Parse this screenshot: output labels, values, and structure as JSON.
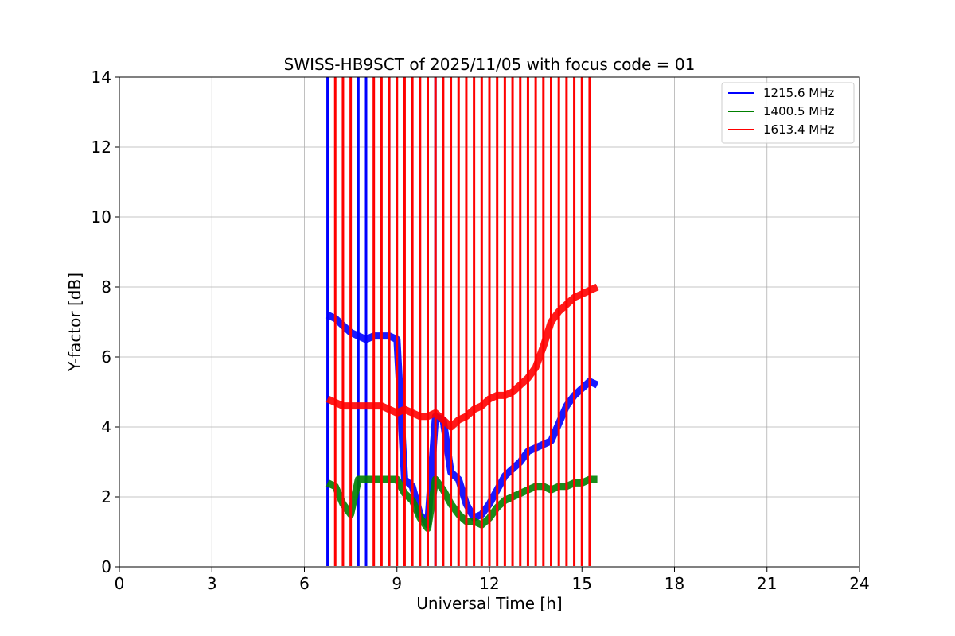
{
  "chart_data": {
    "type": "line",
    "title": "SWISS-HB9SCT of 2025/11/05 with focus code = 01",
    "xlabel": "Universal Time [h]",
    "ylabel": "Y-factor [dB]",
    "xlim": [
      0,
      24
    ],
    "ylim": [
      0,
      14
    ],
    "xticks": [
      "0",
      "3",
      "6",
      "9",
      "12",
      "15",
      "18",
      "21",
      "24"
    ],
    "yticks": [
      "0",
      "2",
      "4",
      "6",
      "8",
      "10",
      "12",
      "14"
    ],
    "grid": true,
    "legend_position": "top-right",
    "series": [
      {
        "name": "1215.6 MHz",
        "color": "#0000ff",
        "spikes": [
          6.75,
          7.75,
          8.0,
          8.75,
          10.25
        ],
        "points": [
          [
            6.75,
            7.2
          ],
          [
            7.0,
            7.1
          ],
          [
            7.25,
            6.9
          ],
          [
            7.5,
            6.7
          ],
          [
            7.75,
            6.6
          ],
          [
            8.0,
            6.5
          ],
          [
            8.25,
            6.6
          ],
          [
            8.5,
            6.6
          ],
          [
            8.75,
            6.6
          ],
          [
            9.0,
            6.5
          ],
          [
            9.25,
            2.5
          ],
          [
            9.5,
            2.3
          ],
          [
            9.75,
            1.5
          ],
          [
            10.0,
            1.2
          ],
          [
            10.25,
            4.3
          ],
          [
            10.5,
            4.2
          ],
          [
            10.75,
            2.7
          ],
          [
            11.0,
            2.5
          ],
          [
            11.25,
            1.8
          ],
          [
            11.5,
            1.4
          ],
          [
            11.75,
            1.5
          ],
          [
            12.0,
            1.8
          ],
          [
            12.25,
            2.2
          ],
          [
            12.5,
            2.6
          ],
          [
            12.75,
            2.8
          ],
          [
            13.0,
            3.0
          ],
          [
            13.25,
            3.3
          ],
          [
            13.5,
            3.4
          ],
          [
            13.75,
            3.5
          ],
          [
            14.0,
            3.6
          ],
          [
            14.25,
            4.1
          ],
          [
            14.5,
            4.6
          ],
          [
            14.75,
            4.9
          ],
          [
            15.0,
            5.1
          ],
          [
            15.25,
            5.3
          ],
          [
            15.5,
            5.2
          ]
        ]
      },
      {
        "name": "1400.5 MHz",
        "color": "#008000",
        "spikes": [],
        "points": [
          [
            6.75,
            2.4
          ],
          [
            7.0,
            2.3
          ],
          [
            7.25,
            1.8
          ],
          [
            7.5,
            1.5
          ],
          [
            7.75,
            2.5
          ],
          [
            8.0,
            2.5
          ],
          [
            8.25,
            2.5
          ],
          [
            8.5,
            2.5
          ],
          [
            8.75,
            2.5
          ],
          [
            9.0,
            2.5
          ],
          [
            9.25,
            2.1
          ],
          [
            9.5,
            1.9
          ],
          [
            9.75,
            1.4
          ],
          [
            10.0,
            1.1
          ],
          [
            10.25,
            2.5
          ],
          [
            10.5,
            2.2
          ],
          [
            10.75,
            1.8
          ],
          [
            11.0,
            1.5
          ],
          [
            11.25,
            1.3
          ],
          [
            11.5,
            1.3
          ],
          [
            11.75,
            1.2
          ],
          [
            12.0,
            1.4
          ],
          [
            12.25,
            1.7
          ],
          [
            12.5,
            1.9
          ],
          [
            12.75,
            2.0
          ],
          [
            13.0,
            2.1
          ],
          [
            13.25,
            2.2
          ],
          [
            13.5,
            2.3
          ],
          [
            13.75,
            2.3
          ],
          [
            14.0,
            2.2
          ],
          [
            14.25,
            2.3
          ],
          [
            14.5,
            2.3
          ],
          [
            14.75,
            2.4
          ],
          [
            15.0,
            2.4
          ],
          [
            15.25,
            2.5
          ],
          [
            15.5,
            2.5
          ]
        ]
      },
      {
        "name": "1613.4 MHz",
        "color": "#ff0000",
        "spikes": [
          7.0,
          7.25,
          7.5,
          8.25,
          8.5,
          8.75,
          9.0,
          9.25,
          9.5,
          9.75,
          10.0,
          10.25,
          10.5,
          10.75,
          11.0,
          11.25,
          11.5,
          11.75,
          12.0,
          12.25,
          12.5,
          12.75,
          13.0,
          13.25,
          13.5,
          13.75,
          14.0,
          14.25,
          14.5,
          14.75,
          15.0,
          15.25
        ],
        "points": [
          [
            6.75,
            4.8
          ],
          [
            7.0,
            4.7
          ],
          [
            7.25,
            4.6
          ],
          [
            7.5,
            4.6
          ],
          [
            7.75,
            4.6
          ],
          [
            8.0,
            4.6
          ],
          [
            8.25,
            4.6
          ],
          [
            8.5,
            4.6
          ],
          [
            8.75,
            4.5
          ],
          [
            9.0,
            4.4
          ],
          [
            9.25,
            4.5
          ],
          [
            9.5,
            4.4
          ],
          [
            9.75,
            4.3
          ],
          [
            10.0,
            4.3
          ],
          [
            10.25,
            4.4
          ],
          [
            10.5,
            4.2
          ],
          [
            10.75,
            4.0
          ],
          [
            11.0,
            4.2
          ],
          [
            11.25,
            4.3
          ],
          [
            11.5,
            4.5
          ],
          [
            11.75,
            4.6
          ],
          [
            12.0,
            4.8
          ],
          [
            12.25,
            4.9
          ],
          [
            12.5,
            4.9
          ],
          [
            12.75,
            5.0
          ],
          [
            13.0,
            5.2
          ],
          [
            13.25,
            5.4
          ],
          [
            13.5,
            5.7
          ],
          [
            13.75,
            6.3
          ],
          [
            14.0,
            7.0
          ],
          [
            14.25,
            7.3
          ],
          [
            14.5,
            7.5
          ],
          [
            14.75,
            7.7
          ],
          [
            15.0,
            7.8
          ],
          [
            15.25,
            7.9
          ],
          [
            15.5,
            8.0
          ]
        ]
      }
    ]
  }
}
